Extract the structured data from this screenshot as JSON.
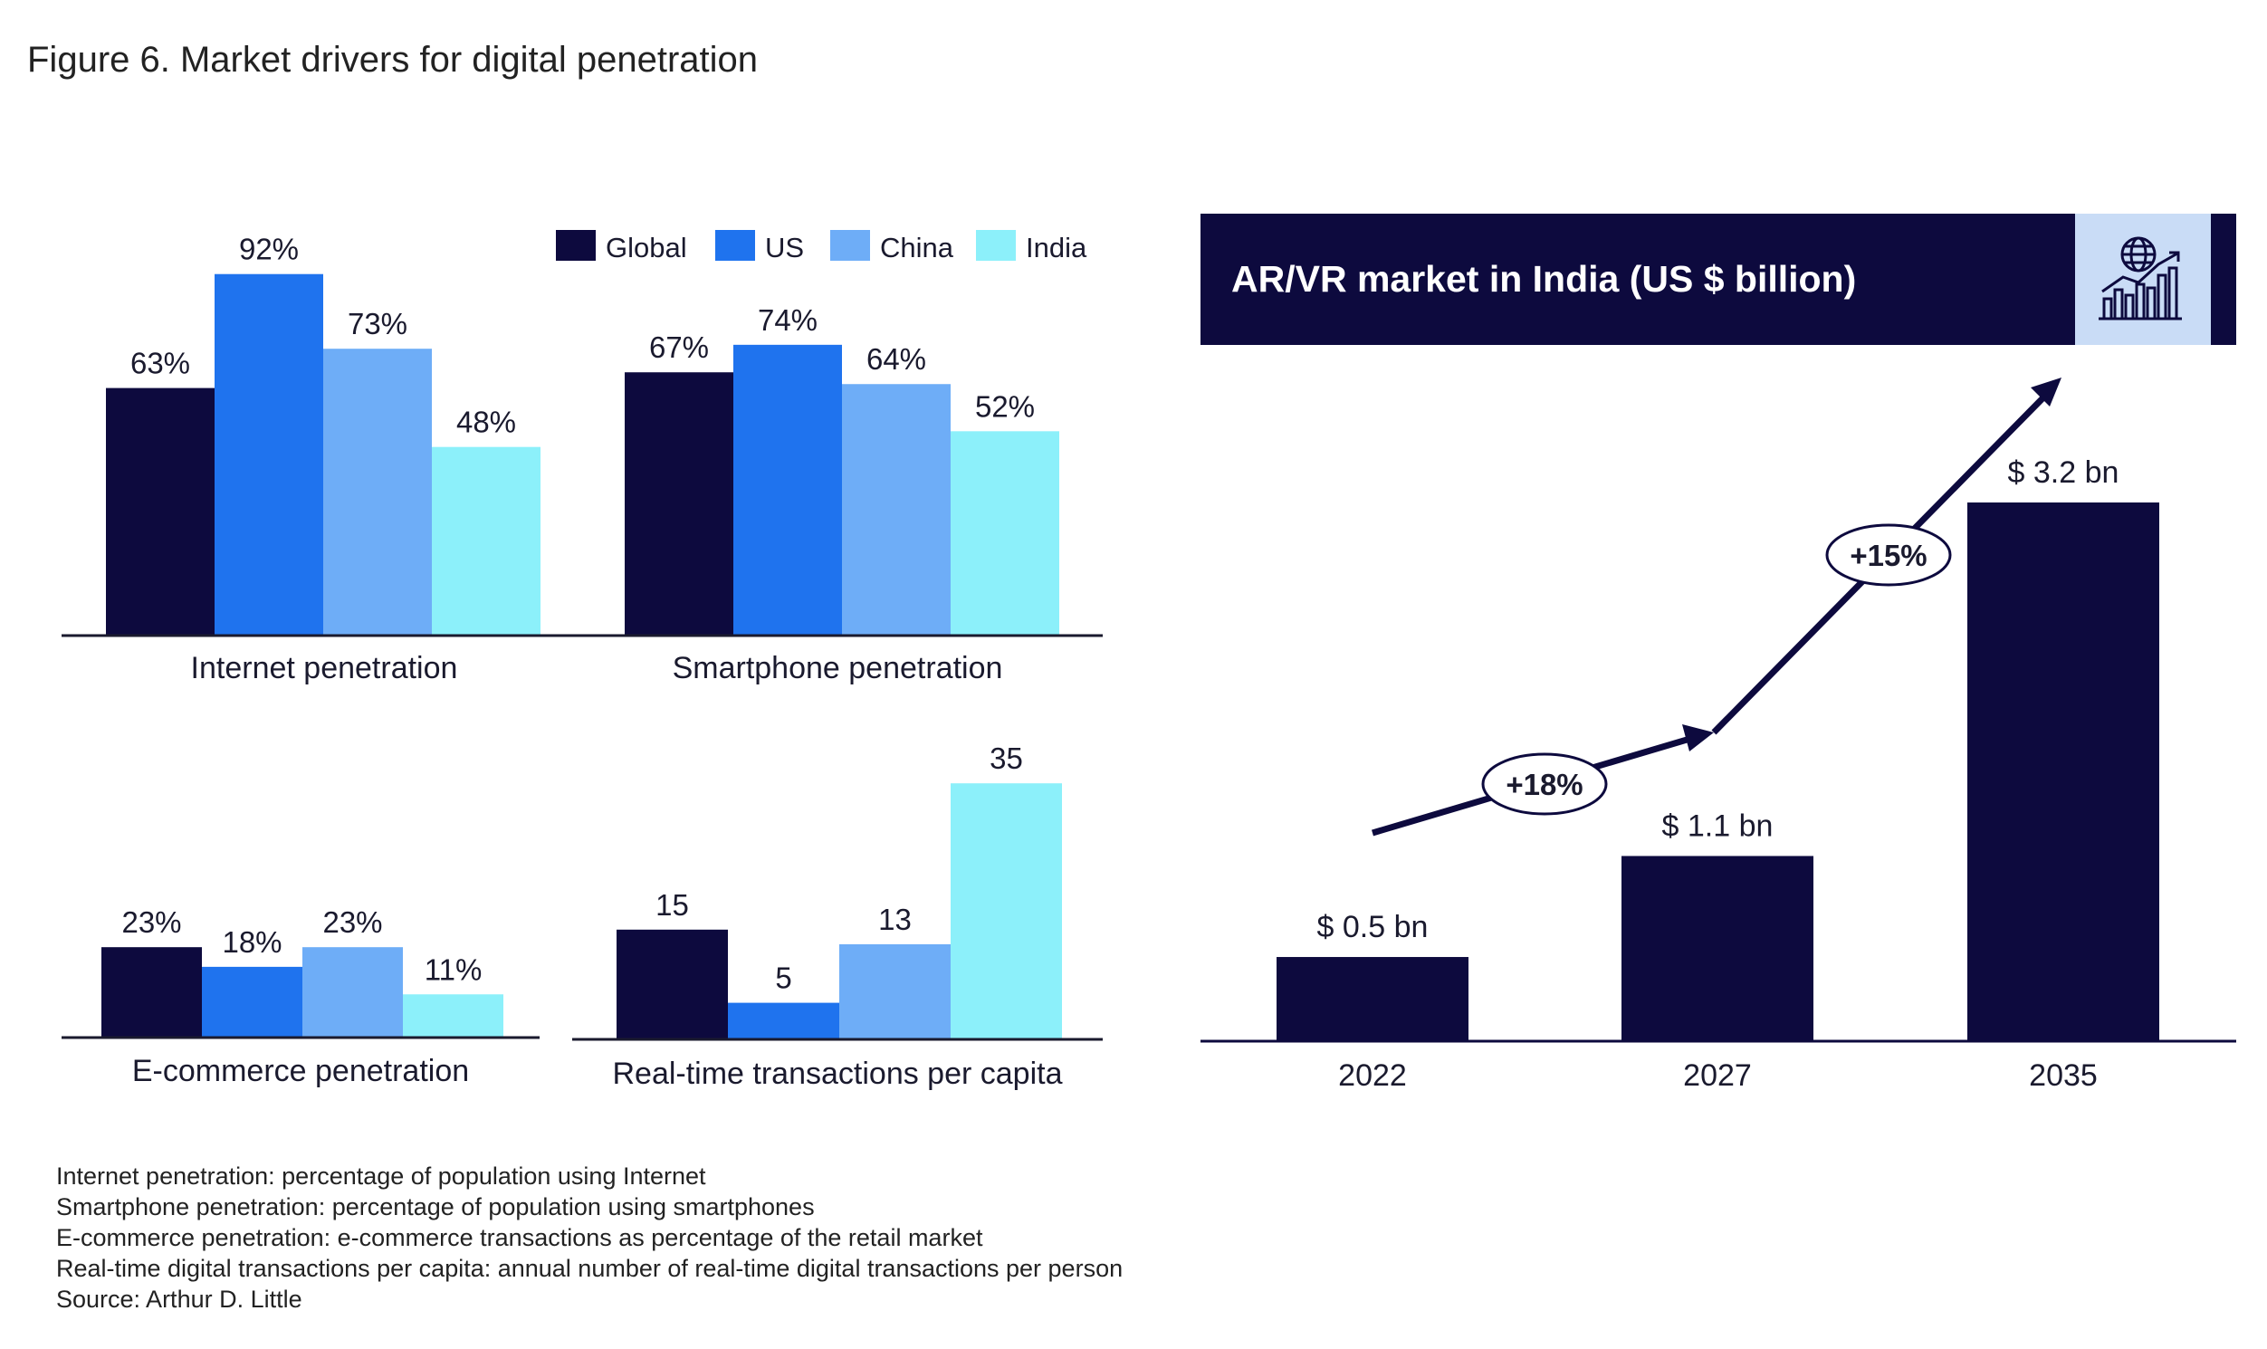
{
  "figure_title": "Figure 6. Market drivers for digital penetration",
  "colors": {
    "Global": "#0d0a3e",
    "US": "#1f73ee",
    "China": "#6eadf7",
    "India": "#8cf0fa",
    "dark": "#0d0a3e",
    "icon_box": "#c9dcf6"
  },
  "legend": [
    "Global",
    "US",
    "China",
    "India"
  ],
  "chart_data": [
    {
      "type": "bar",
      "title": "Internet penetration",
      "categories": [
        "Internet penetration"
      ],
      "series": [
        {
          "name": "Global",
          "values": [
            63
          ],
          "labels": [
            "63%"
          ]
        },
        {
          "name": "US",
          "values": [
            92
          ],
          "labels": [
            "92%"
          ]
        },
        {
          "name": "China",
          "values": [
            73
          ],
          "labels": [
            "73%"
          ]
        },
        {
          "name": "India",
          "values": [
            48
          ],
          "labels": [
            "48%"
          ]
        }
      ],
      "ylim": [
        0,
        100
      ]
    },
    {
      "type": "bar",
      "title": "Smartphone penetration",
      "categories": [
        "Smartphone penetration"
      ],
      "series": [
        {
          "name": "Global",
          "values": [
            67
          ],
          "labels": [
            "67%"
          ]
        },
        {
          "name": "US",
          "values": [
            74
          ],
          "labels": [
            "74%"
          ]
        },
        {
          "name": "China",
          "values": [
            64
          ],
          "labels": [
            "64%"
          ]
        },
        {
          "name": "India",
          "values": [
            52
          ],
          "labels": [
            "52%"
          ]
        }
      ],
      "ylim": [
        0,
        100
      ]
    },
    {
      "type": "bar",
      "title": "E-commerce penetration",
      "categories": [
        "E-commerce penetration"
      ],
      "series": [
        {
          "name": "Global",
          "values": [
            23
          ],
          "labels": [
            "23%"
          ]
        },
        {
          "name": "US",
          "values": [
            18
          ],
          "labels": [
            "18%"
          ]
        },
        {
          "name": "China",
          "values": [
            23
          ],
          "labels": [
            "23%"
          ]
        },
        {
          "name": "India",
          "values": [
            11
          ],
          "labels": [
            "11%"
          ]
        }
      ],
      "ylim": [
        0,
        100
      ]
    },
    {
      "type": "bar",
      "title": "Real-time transactions per capita",
      "categories": [
        "Real-time transactions per capita"
      ],
      "series": [
        {
          "name": "Global",
          "values": [
            15
          ],
          "labels": [
            "15"
          ]
        },
        {
          "name": "US",
          "values": [
            5
          ],
          "labels": [
            "5"
          ]
        },
        {
          "name": "China",
          "values": [
            13
          ],
          "labels": [
            "13"
          ]
        },
        {
          "name": "India",
          "values": [
            35
          ],
          "labels": [
            "35"
          ]
        }
      ],
      "ylim": [
        0,
        35
      ]
    },
    {
      "type": "bar",
      "title": "AR/VR market in India (US $ billion)",
      "categories": [
        "2022",
        "2027",
        "2035"
      ],
      "values": [
        0.5,
        1.1,
        3.2
      ],
      "labels": [
        "$ 0.5 bn",
        "$ 1.1 bn",
        "$ 3.2 bn"
      ],
      "growth": [
        "+18%",
        "+15%"
      ],
      "ylim": [
        0,
        3.2
      ]
    }
  ],
  "notes": [
    "Internet penetration: percentage of population using Internet",
    "Smartphone penetration: percentage of population using smartphones",
    "E-commerce penetration: e-commerce transactions as percentage of the retail market",
    "Real-time digital transactions per capita: annual number of real-time digital transactions per person",
    "Source: Arthur D. Little"
  ]
}
